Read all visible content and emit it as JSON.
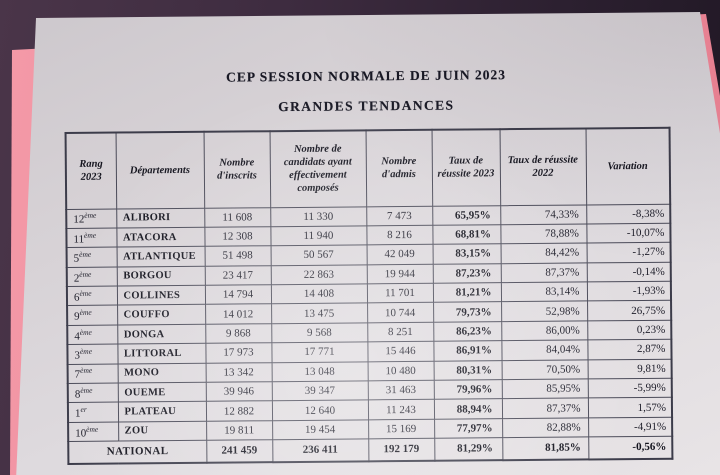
{
  "colors": {
    "desk_dark": "#1f1723",
    "desk_light": "#4a3549",
    "folder_pink": "#ee8c9c",
    "paper": "#dedade",
    "ink": "#1c1c28",
    "table_border": "#4a4a58"
  },
  "titles": {
    "line1": "CEP SESSION NORMALE DE JUIN 2023",
    "line2": "GRANDES TENDANCES"
  },
  "table": {
    "headers": [
      "Rang 2023",
      "Départements",
      "Nombre d'inscrits",
      "Nombre de candidats ayant effectivement composés",
      "Nombre d'admis",
      "Taux de réussite 2023",
      "Taux de réussite 2022",
      "Variation"
    ],
    "rows": [
      {
        "rank": "12",
        "rank_sup": "ème",
        "department": "ALIBORI",
        "inscrits": "11 608",
        "composes": "11 330",
        "admis": "7 473",
        "taux_2023": "65,95%",
        "taux_2022": "74,33%",
        "variation": "-8,38%"
      },
      {
        "rank": "11",
        "rank_sup": "ème",
        "department": "ATACORA",
        "inscrits": "12 308",
        "composes": "11 940",
        "admis": "8 216",
        "taux_2023": "68,81%",
        "taux_2022": "78,88%",
        "variation": "-10,07%"
      },
      {
        "rank": "5",
        "rank_sup": "ème",
        "department": "ATLANTIQUE",
        "inscrits": "51 498",
        "composes": "50 567",
        "admis": "42 049",
        "taux_2023": "83,15%",
        "taux_2022": "84,42%",
        "variation": "-1,27%"
      },
      {
        "rank": "2",
        "rank_sup": "ème",
        "department": "BORGOU",
        "inscrits": "23 417",
        "composes": "22 863",
        "admis": "19 944",
        "taux_2023": "87,23%",
        "taux_2022": "87,37%",
        "variation": "-0,14%"
      },
      {
        "rank": "6",
        "rank_sup": "ème",
        "department": "COLLINES",
        "inscrits": "14 794",
        "composes": "14 408",
        "admis": "11 701",
        "taux_2023": "81,21%",
        "taux_2022": "83,14%",
        "variation": "-1,93%"
      },
      {
        "rank": "9",
        "rank_sup": "ème",
        "department": "COUFFO",
        "inscrits": "14 012",
        "composes": "13 475",
        "admis": "10 744",
        "taux_2023": "79,73%",
        "taux_2022": "52,98%",
        "variation": "26,75%"
      },
      {
        "rank": "4",
        "rank_sup": "ème",
        "department": "DONGA",
        "inscrits": "9 868",
        "composes": "9 568",
        "admis": "8 251",
        "taux_2023": "86,23%",
        "taux_2022": "86,00%",
        "variation": "0,23%"
      },
      {
        "rank": "3",
        "rank_sup": "ème",
        "department": "LITTORAL",
        "inscrits": "17 973",
        "composes": "17 771",
        "admis": "15 446",
        "taux_2023": "86,91%",
        "taux_2022": "84,04%",
        "variation": "2,87%"
      },
      {
        "rank": "7",
        "rank_sup": "ème",
        "department": "MONO",
        "inscrits": "13 342",
        "composes": "13 048",
        "admis": "10 480",
        "taux_2023": "80,31%",
        "taux_2022": "70,50%",
        "variation": "9,81%"
      },
      {
        "rank": "8",
        "rank_sup": "ème",
        "department": "OUEME",
        "inscrits": "39 946",
        "composes": "39 347",
        "admis": "31 463",
        "taux_2023": "79,96%",
        "taux_2022": "85,95%",
        "variation": "-5,99%"
      },
      {
        "rank": "1",
        "rank_sup": "er",
        "department": "PLATEAU",
        "inscrits": "12 882",
        "composes": "12 640",
        "admis": "11 243",
        "taux_2023": "88,94%",
        "taux_2022": "87,37%",
        "variation": "1,57%"
      },
      {
        "rank": "10",
        "rank_sup": "ème",
        "department": "ZOU",
        "inscrits": "19 811",
        "composes": "19 454",
        "admis": "15 169",
        "taux_2023": "77,97%",
        "taux_2022": "82,88%",
        "variation": "-4,91%"
      }
    ],
    "national": {
      "label": "NATIONAL",
      "inscrits": "241 459",
      "composes": "236 411",
      "admis": "192 179",
      "taux_2023": "81,29%",
      "taux_2022": "81,85%",
      "variation": "-0,56%"
    }
  }
}
